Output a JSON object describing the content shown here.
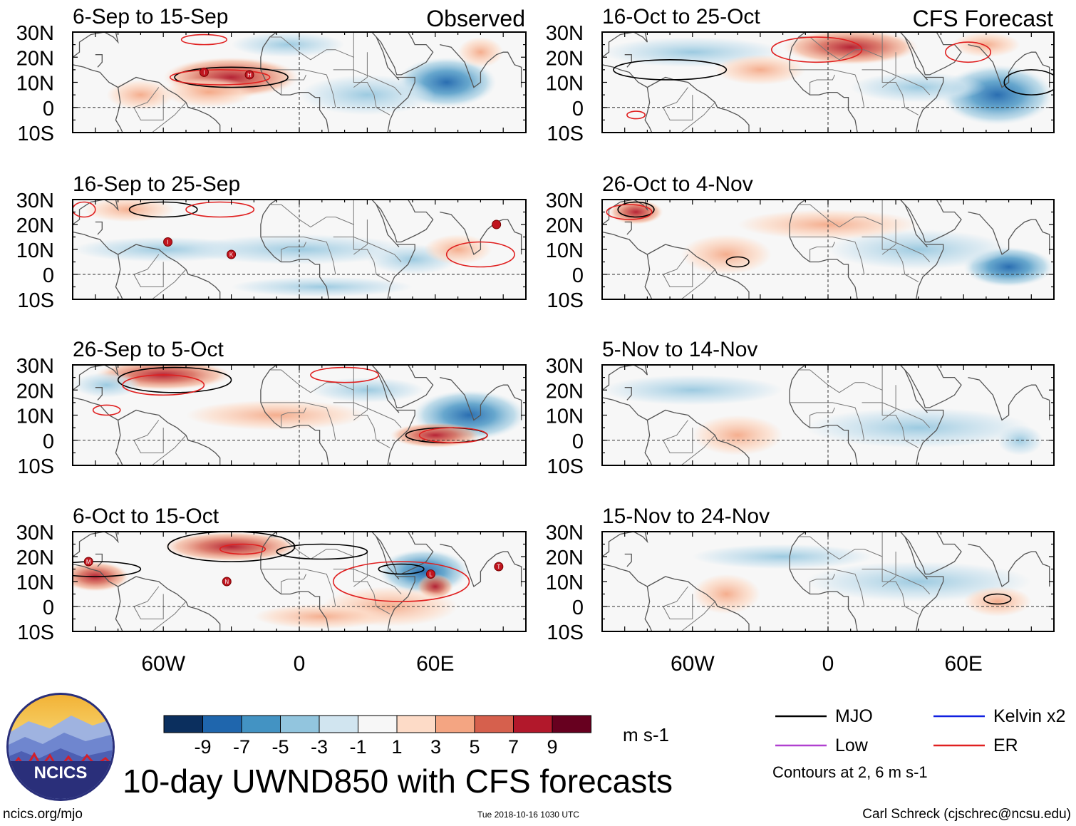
{
  "title": "10-day UWND850 with CFS forecasts",
  "units": "m s-1",
  "left_column_header": "Observed",
  "right_column_header": "CFS Forecast",
  "lat_labels": [
    "30N",
    "20N",
    "10N",
    "0",
    "10S"
  ],
  "lon_labels": [
    "60W",
    "0",
    "60E"
  ],
  "panels": {
    "left": [
      {
        "period": "6-Sep to 15-Sep"
      },
      {
        "period": "16-Sep to 25-Sep"
      },
      {
        "period": "26-Sep to 5-Oct"
      },
      {
        "period": "6-Oct to 15-Oct"
      }
    ],
    "right": [
      {
        "period": "16-Oct to 25-Oct"
      },
      {
        "period": "26-Oct to 4-Nov"
      },
      {
        "period": "5-Nov to 14-Nov"
      },
      {
        "period": "15-Nov to 24-Nov"
      }
    ]
  },
  "colorbar": {
    "ticks": [
      "-9",
      "-7",
      "-5",
      "-3",
      "-1",
      "1",
      "3",
      "5",
      "7",
      "9"
    ],
    "colors": [
      "#0b2f5e",
      "#1f66ad",
      "#4393c3",
      "#92c5de",
      "#d1e5f0",
      "#f7f7f7",
      "#fddbc7",
      "#f4a582",
      "#d6604d",
      "#b2182b",
      "#67001f"
    ]
  },
  "legend": {
    "items": [
      {
        "label": "MJO",
        "color": "#000000"
      },
      {
        "label": "Kelvin x2",
        "color": "#1020e0"
      },
      {
        "label": "Low",
        "color": "#b040d0"
      },
      {
        "label": "ER",
        "color": "#e02020"
      }
    ],
    "note": "Contours at 2, 6 m s-1"
  },
  "storm_markers": [
    "I",
    "H",
    "K",
    "M",
    "N",
    "L",
    "T"
  ],
  "logo_text": "NCICS",
  "footer": {
    "url": "ncics.org/mjo",
    "timestamp": "Tue 2018-10-16 1030 UTC",
    "credit": "Carl Schreck (cjschrec@ncsu.edu)"
  }
}
